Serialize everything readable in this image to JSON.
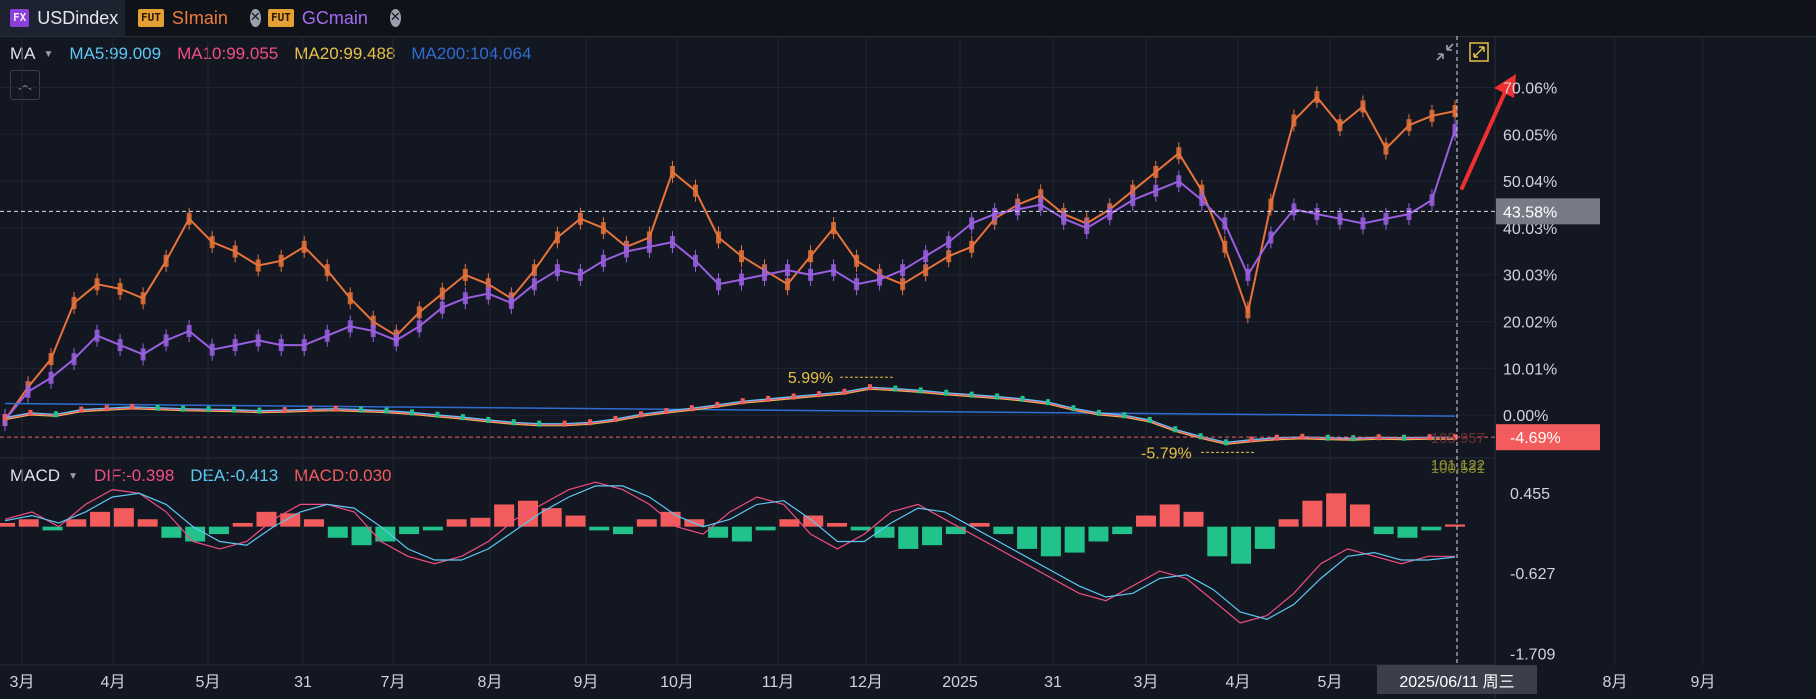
{
  "tabs": [
    {
      "badge": "FX",
      "label": "USDindex",
      "closable": false,
      "active": true
    },
    {
      "badge": "FUT",
      "label": "SImain",
      "closable": true,
      "active": false,
      "color": "#f07b3f"
    },
    {
      "badge": "FUT",
      "label": "GCmain",
      "closable": true,
      "active": false,
      "color": "#a56cf0"
    }
  ],
  "ma_legend": {
    "name": "MA",
    "items": [
      {
        "label": "MA5:99.009",
        "color": "#5ec8f2"
      },
      {
        "label": "MA10:99.055",
        "color": "#f24e83"
      },
      {
        "label": "MA20:99.488",
        "color": "#e8c046"
      },
      {
        "label": "MA200:104.064",
        "color": "#2f6dd1"
      }
    ]
  },
  "macd_legend": {
    "name": "MACD",
    "items": [
      {
        "label": "DIF:-0.398",
        "color": "#f24e83"
      },
      {
        "label": "DEA:-0.413",
        "color": "#5ec8f2"
      },
      {
        "label": "MACD:0.030",
        "color": "#f25c5c"
      }
    ]
  },
  "colors": {
    "silver": "#e8733a",
    "gold": "#9a5fe0",
    "usd_up": "#f25c5c",
    "usd_down": "#22c38a",
    "macd_up": "#f25c5c",
    "macd_down": "#22c38a",
    "crosshair": "#d9dde6",
    "background": "#131722"
  },
  "chart_data": {
    "type": "line",
    "y_unit": "%",
    "y_ticks": [
      "70.06%",
      "60.05%",
      "50.04%",
      "40.03%",
      "30.03%",
      "20.02%",
      "10.01%",
      "0.00%"
    ],
    "ylim": [
      -8.5,
      77
    ],
    "x_ticks": [
      "3月",
      "4月",
      "5月",
      "31",
      "7月",
      "8月",
      "9月",
      "10月",
      "11月",
      "12月",
      "2025",
      "31",
      "3月",
      "4月",
      "5月",
      "8月",
      "9月"
    ],
    "series": [
      {
        "name": "SImain",
        "color": "#e8733a",
        "values": [
          -1,
          6,
          12,
          24,
          28,
          27,
          25,
          33,
          42,
          37,
          35,
          32,
          33,
          36,
          31,
          25,
          20,
          17,
          22,
          26,
          30,
          28,
          25,
          31,
          38,
          42,
          40,
          36,
          38,
          52,
          48,
          38,
          34,
          31,
          28,
          34,
          40,
          33,
          30,
          28,
          31,
          34,
          36,
          42,
          45,
          47,
          43,
          41,
          44,
          48,
          52,
          56,
          48,
          36,
          22,
          45,
          63,
          68,
          62,
          66,
          57,
          62,
          64,
          65
        ]
      },
      {
        "name": "GCmain",
        "color": "#9a5fe0",
        "values": [
          -1,
          5,
          8,
          12,
          17,
          15,
          13,
          16,
          18,
          14,
          15,
          16,
          15,
          15,
          17,
          19,
          18,
          16,
          19,
          23,
          25,
          26,
          24,
          28,
          31,
          30,
          33,
          35,
          36,
          37,
          33,
          28,
          29,
          30,
          31,
          30,
          31,
          28,
          29,
          31,
          34,
          37,
          41,
          43,
          44,
          45,
          42,
          40,
          43,
          46,
          48,
          50,
          46,
          41,
          30,
          38,
          44,
          43,
          42,
          41,
          42,
          43,
          46,
          61
        ]
      },
      {
        "name": "USDindex",
        "color": "#f25c5c",
        "values": [
          -0.5,
          0.5,
          0.2,
          1.2,
          1.5,
          1.8,
          1.6,
          1.4,
          1.3,
          1.2,
          1.0,
          1.1,
          1.3,
          1.4,
          1.2,
          1.0,
          0.6,
          0.1,
          -0.4,
          -1.0,
          -1.5,
          -1.8,
          -1.8,
          -1.5,
          -0.8,
          0.2,
          0.9,
          1.5,
          2.2,
          3.0,
          3.5,
          4.0,
          4.5,
          5.0,
          5.99,
          5.7,
          5.3,
          4.8,
          4.4,
          4.0,
          3.5,
          2.8,
          1.5,
          0.5,
          0.0,
          -1.0,
          -3.0,
          -4.5,
          -5.79,
          -5.2,
          -4.8,
          -4.6,
          -4.8,
          -4.9,
          -4.7,
          -4.8,
          -4.7,
          -4.69
        ]
      }
    ],
    "annotations": [
      "5.99%",
      "-5.79%"
    ],
    "right_labels": [
      {
        "text": "43.58%",
        "value": 43.58,
        "style": "crosshair"
      },
      {
        "text": "-4.69%",
        "value": -4.69,
        "style": "current"
      },
      {
        "text": "105.957",
        "color": "#6b3030"
      },
      {
        "text": "101.122",
        "color": "#9a9a3a"
      },
      {
        "text": "100.531",
        "color": "#7c7f2a"
      }
    ],
    "crosshair_date": "2025/06/11 周三",
    "macd": {
      "y_ticks": [
        "0.455",
        "-0.627",
        "-1.709"
      ],
      "ylim": [
        -1.8,
        0.9
      ],
      "histogram": [
        0.05,
        0.1,
        -0.05,
        0.1,
        0.2,
        0.25,
        0.1,
        -0.15,
        -0.2,
        -0.1,
        0.05,
        0.2,
        0.18,
        0.1,
        -0.15,
        -0.25,
        -0.2,
        -0.1,
        -0.05,
        0.1,
        0.12,
        0.3,
        0.35,
        0.25,
        0.15,
        -0.05,
        -0.1,
        0.1,
        0.2,
        0.1,
        -0.15,
        -0.2,
        -0.05,
        0.1,
        0.15,
        0.05,
        -0.05,
        -0.15,
        -0.3,
        -0.25,
        -0.1,
        0.05,
        -0.1,
        -0.3,
        -0.4,
        -0.35,
        -0.2,
        -0.1,
        0.15,
        0.3,
        0.2,
        -0.4,
        -0.5,
        -0.3,
        0.1,
        0.35,
        0.45,
        0.3,
        -0.1,
        -0.15,
        -0.05,
        0.03
      ],
      "dif": [
        0.1,
        0.2,
        0.0,
        0.3,
        0.5,
        0.45,
        0.2,
        -0.2,
        -0.3,
        -0.2,
        0.1,
        0.3,
        0.3,
        0.2,
        -0.2,
        -0.4,
        -0.5,
        -0.4,
        -0.2,
        0.1,
        0.3,
        0.5,
        0.6,
        0.5,
        0.3,
        0.0,
        -0.1,
        0.2,
        0.4,
        0.3,
        -0.1,
        -0.3,
        -0.1,
        0.2,
        0.3,
        0.1,
        -0.1,
        -0.3,
        -0.5,
        -0.7,
        -0.9,
        -1.0,
        -0.8,
        -0.6,
        -0.7,
        -1.0,
        -1.3,
        -1.2,
        -0.9,
        -0.5,
        -0.3,
        -0.4,
        -0.5,
        -0.4,
        -0.4
      ],
      "dea": [
        0.08,
        0.15,
        0.05,
        0.2,
        0.4,
        0.45,
        0.3,
        0.0,
        -0.2,
        -0.25,
        0.0,
        0.2,
        0.3,
        0.25,
        0.0,
        -0.3,
        -0.45,
        -0.45,
        -0.3,
        -0.05,
        0.2,
        0.4,
        0.55,
        0.55,
        0.4,
        0.15,
        0.0,
        0.1,
        0.3,
        0.35,
        0.1,
        -0.2,
        -0.2,
        0.05,
        0.25,
        0.2,
        0.0,
        -0.2,
        -0.4,
        -0.6,
        -0.8,
        -0.95,
        -0.9,
        -0.7,
        -0.65,
        -0.85,
        -1.15,
        -1.25,
        -1.05,
        -0.7,
        -0.4,
        -0.35,
        -0.45,
        -0.45,
        -0.41
      ]
    }
  }
}
